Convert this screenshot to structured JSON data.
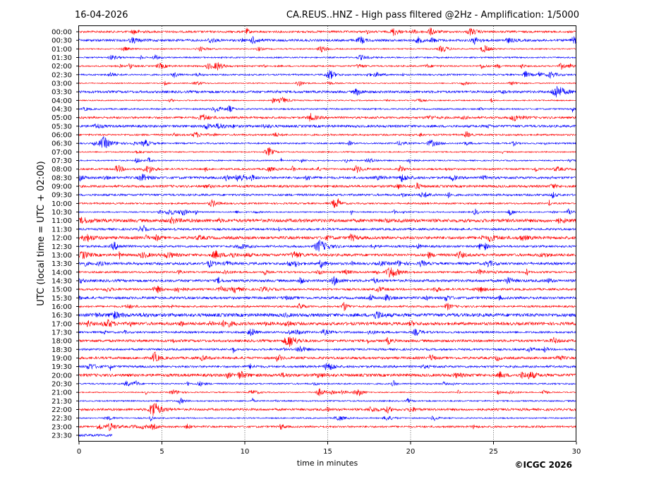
{
  "chart_data": {
    "type": "line",
    "subtype": "helicorder",
    "date": "16-04-2026",
    "title": "CA.REUS..HNZ - High pass filtered @2Hz - Amplification: 1/5000",
    "xlabel": "time in minutes",
    "ylabel": "UTC (local time = UTC + 02:00)",
    "xlim": [
      0,
      30
    ],
    "xticks": [
      "0",
      "5",
      "10",
      "15",
      "20",
      "25",
      "30"
    ],
    "grid": "vertical dotted lines at 5-minute intervals",
    "colors": [
      "#ff0000",
      "#0000ff"
    ],
    "rows": [
      "00:00",
      "00:30",
      "01:00",
      "01:30",
      "02:00",
      "02:30",
      "03:00",
      "03:30",
      "04:00",
      "04:30",
      "05:00",
      "05:30",
      "06:00",
      "06:30",
      "07:00",
      "07:30",
      "08:00",
      "08:30",
      "09:00",
      "09:30",
      "10:00",
      "10:30",
      "11:00",
      "11:30",
      "12:00",
      "12:30",
      "13:00",
      "13:30",
      "14:00",
      "14:30",
      "15:00",
      "15:30",
      "16:00",
      "16:30",
      "17:00",
      "17:30",
      "18:00",
      "18:30",
      "19:00",
      "19:30",
      "20:00",
      "20:30",
      "21:00",
      "21:30",
      "22:00",
      "22:30",
      "23:00",
      "23:30"
    ],
    "last_trace_end_minute": 2,
    "notable_events": [
      {
        "row": "03:30",
        "minute": 28.8,
        "amplitude": "high"
      },
      {
        "row": "06:30",
        "minute": 1.5,
        "amplitude": "high"
      },
      {
        "row": "12:30",
        "minute": 14.5,
        "amplitude": "high"
      },
      {
        "row": "14:00",
        "minute": 18.8,
        "amplitude": "high"
      },
      {
        "row": "22:00",
        "minute": 4.5,
        "amplitude": "high"
      },
      {
        "row": "18:00",
        "minute": 12.6,
        "amplitude": "medium"
      }
    ]
  },
  "copyright": "©ICGC 2026"
}
